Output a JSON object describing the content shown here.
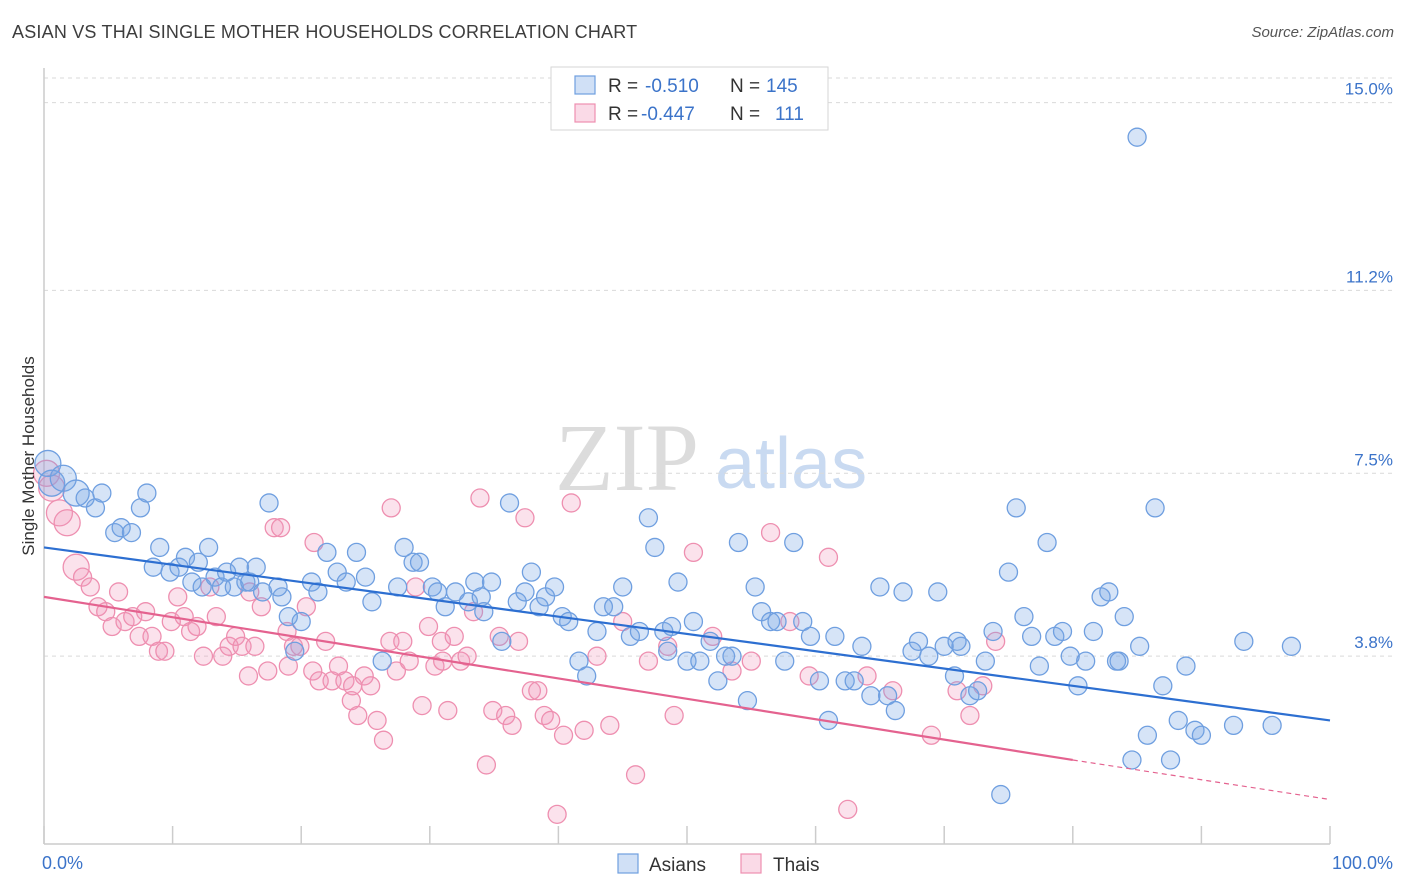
{
  "header": {
    "title": "ASIAN VS THAI SINGLE MOTHER HOUSEHOLDS CORRELATION CHART",
    "source": "Source: ZipAtlas.com"
  },
  "watermark": {
    "zip": "ZIP",
    "atlas": "atlas"
  },
  "colors": {
    "asians": "#6f9fe0",
    "asians_fill": "rgba(120,165,230,0.30)",
    "asians_line": "#2d6fd1",
    "thais": "#ee8fb0",
    "thais_fill": "rgba(240,150,185,0.28)",
    "thais_line": "#e4628f",
    "tick_text": "#3b73c9",
    "grid": "#d9d9d9"
  },
  "legend": {
    "rows": [
      {
        "r_label": "R =",
        "r_value": "-0.510",
        "n_label": "N =",
        "n_value": "145"
      },
      {
        "r_label": "R =",
        "r_value": "-0.447",
        "n_label": "N =",
        "n_value": "111"
      }
    ],
    "bottom": [
      "Asians",
      "Thais"
    ]
  },
  "chart_data": {
    "type": "scatter",
    "title": "ASIAN VS THAI SINGLE MOTHER HOUSEHOLDS CORRELATION CHART",
    "xlabel": "",
    "ylabel": "Single Mother Households",
    "xlim": [
      0,
      100
    ],
    "ylim": [
      0,
      15.7
    ],
    "x_tick_labels": [
      "0.0%",
      "100.0%"
    ],
    "y_ticks": [
      3.8,
      7.5,
      11.2,
      15.0
    ],
    "y_tick_labels": [
      "3.8%",
      "7.5%",
      "11.2%",
      "15.0%"
    ],
    "grid": true,
    "legend_position": "top-center",
    "series": [
      {
        "name": "Asians",
        "r": -0.51,
        "n": 145,
        "trend": {
          "x": [
            0,
            100
          ],
          "y": [
            6.0,
            2.5
          ]
        },
        "points": [
          [
            0.3,
            7.7
          ],
          [
            0.6,
            7.3
          ],
          [
            1.5,
            7.4
          ],
          [
            2.5,
            7.1
          ],
          [
            3.2,
            7.0
          ],
          [
            4.0,
            6.8
          ],
          [
            4.5,
            7.1
          ],
          [
            5.5,
            6.3
          ],
          [
            6.0,
            6.4
          ],
          [
            6.8,
            6.3
          ],
          [
            7.5,
            6.8
          ],
          [
            8.0,
            7.1
          ],
          [
            8.5,
            5.6
          ],
          [
            9.0,
            6.0
          ],
          [
            9.8,
            5.5
          ],
          [
            10.5,
            5.6
          ],
          [
            11.0,
            5.8
          ],
          [
            11.5,
            5.3
          ],
          [
            12.0,
            5.7
          ],
          [
            12.3,
            5.2
          ],
          [
            12.8,
            6.0
          ],
          [
            13.3,
            5.4
          ],
          [
            13.8,
            5.2
          ],
          [
            14.2,
            5.5
          ],
          [
            14.8,
            5.2
          ],
          [
            15.2,
            5.6
          ],
          [
            15.7,
            5.3
          ],
          [
            16.0,
            5.3
          ],
          [
            16.5,
            5.6
          ],
          [
            17.0,
            5.1
          ],
          [
            17.5,
            6.9
          ],
          [
            18.5,
            5.0
          ],
          [
            19.0,
            4.6
          ],
          [
            19.5,
            3.9
          ],
          [
            20.0,
            4.5
          ],
          [
            20.8,
            5.3
          ],
          [
            21.3,
            5.1
          ],
          [
            22.0,
            5.9
          ],
          [
            22.8,
            5.5
          ],
          [
            23.5,
            5.3
          ],
          [
            24.3,
            5.9
          ],
          [
            25.0,
            5.4
          ],
          [
            25.5,
            4.9
          ],
          [
            26.3,
            3.7
          ],
          [
            27.5,
            5.2
          ],
          [
            28.0,
            6.0
          ],
          [
            28.7,
            5.7
          ],
          [
            29.2,
            5.7
          ],
          [
            30.2,
            5.2
          ],
          [
            30.6,
            5.1
          ],
          [
            31.2,
            4.8
          ],
          [
            32.0,
            5.1
          ],
          [
            33.0,
            4.9
          ],
          [
            33.5,
            5.3
          ],
          [
            34.0,
            5.0
          ],
          [
            34.8,
            5.3
          ],
          [
            35.6,
            4.1
          ],
          [
            36.2,
            6.9
          ],
          [
            36.8,
            4.9
          ],
          [
            37.4,
            5.1
          ],
          [
            37.9,
            5.5
          ],
          [
            38.5,
            4.8
          ],
          [
            39.0,
            5.0
          ],
          [
            39.7,
            5.2
          ],
          [
            40.3,
            4.6
          ],
          [
            40.8,
            4.5
          ],
          [
            41.6,
            3.7
          ],
          [
            42.2,
            3.4
          ],
          [
            43.0,
            4.3
          ],
          [
            43.5,
            4.8
          ],
          [
            44.3,
            4.8
          ],
          [
            45.0,
            5.2
          ],
          [
            45.6,
            4.2
          ],
          [
            46.3,
            4.3
          ],
          [
            47.0,
            6.6
          ],
          [
            47.5,
            6.0
          ],
          [
            48.2,
            4.3
          ],
          [
            48.8,
            4.4
          ],
          [
            49.3,
            5.3
          ],
          [
            50.0,
            3.7
          ],
          [
            50.5,
            4.5
          ],
          [
            51.0,
            3.7
          ],
          [
            51.8,
            4.1
          ],
          [
            52.4,
            3.3
          ],
          [
            53.0,
            3.8
          ],
          [
            53.5,
            3.8
          ],
          [
            54.0,
            6.1
          ],
          [
            54.7,
            2.9
          ],
          [
            55.3,
            5.2
          ],
          [
            55.8,
            4.7
          ],
          [
            56.5,
            4.5
          ],
          [
            57.0,
            4.5
          ],
          [
            57.6,
            3.7
          ],
          [
            58.3,
            6.1
          ],
          [
            59.0,
            4.5
          ],
          [
            59.6,
            4.2
          ],
          [
            60.3,
            3.3
          ],
          [
            61.0,
            2.5
          ],
          [
            61.5,
            4.2
          ],
          [
            62.3,
            3.3
          ],
          [
            63.0,
            3.3
          ],
          [
            63.6,
            4.0
          ],
          [
            64.3,
            3.0
          ],
          [
            65.0,
            5.2
          ],
          [
            65.6,
            3.0
          ],
          [
            66.2,
            2.7
          ],
          [
            66.8,
            5.1
          ],
          [
            67.5,
            3.9
          ],
          [
            68.0,
            4.1
          ],
          [
            68.8,
            3.8
          ],
          [
            69.5,
            5.1
          ],
          [
            70.0,
            4.0
          ],
          [
            70.8,
            3.4
          ],
          [
            71.3,
            4.0
          ],
          [
            72.0,
            3.0
          ],
          [
            72.6,
            3.1
          ],
          [
            73.2,
            3.7
          ],
          [
            73.8,
            4.3
          ],
          [
            74.4,
            1.0
          ],
          [
            75.0,
            5.5
          ],
          [
            75.6,
            6.8
          ],
          [
            76.2,
            4.6
          ],
          [
            76.8,
            4.2
          ],
          [
            77.4,
            3.6
          ],
          [
            78.0,
            6.1
          ],
          [
            78.6,
            4.2
          ],
          [
            79.2,
            4.3
          ],
          [
            79.8,
            3.8
          ],
          [
            80.4,
            3.2
          ],
          [
            81.0,
            3.7
          ],
          [
            81.6,
            4.3
          ],
          [
            82.2,
            5.0
          ],
          [
            82.8,
            5.1
          ],
          [
            83.4,
            3.7
          ],
          [
            84.0,
            4.6
          ],
          [
            84.6,
            1.7
          ],
          [
            85.2,
            4.0
          ],
          [
            85.8,
            2.2
          ],
          [
            86.4,
            6.8
          ],
          [
            87.0,
            3.2
          ],
          [
            87.6,
            1.7
          ],
          [
            88.2,
            2.5
          ],
          [
            88.8,
            3.6
          ],
          [
            89.5,
            2.3
          ],
          [
            90.0,
            2.2
          ],
          [
            93.3,
            4.1
          ],
          [
            85.0,
            14.3
          ],
          [
            83.6,
            3.7
          ],
          [
            71.0,
            4.1
          ],
          [
            48.5,
            3.9
          ],
          [
            34.2,
            4.7
          ],
          [
            18.2,
            5.2
          ],
          [
            92.5,
            2.4
          ],
          [
            95.5,
            2.4
          ],
          [
            97.0,
            4.0
          ]
        ]
      },
      {
        "name": "Thais",
        "r": -0.447,
        "n": 111,
        "trend": {
          "x": [
            0,
            80,
            100
          ],
          "y": [
            5.0,
            1.7,
            0.9
          ]
        },
        "points": [
          [
            0.2,
            7.5
          ],
          [
            0.6,
            7.2
          ],
          [
            1.2,
            6.7
          ],
          [
            1.8,
            6.5
          ],
          [
            2.5,
            5.6
          ],
          [
            3.0,
            5.4
          ],
          [
            3.6,
            5.2
          ],
          [
            4.2,
            4.8
          ],
          [
            4.8,
            4.7
          ],
          [
            5.3,
            4.4
          ],
          [
            5.8,
            5.1
          ],
          [
            6.3,
            4.5
          ],
          [
            6.9,
            4.6
          ],
          [
            7.4,
            4.2
          ],
          [
            7.9,
            4.7
          ],
          [
            8.4,
            4.2
          ],
          [
            8.9,
            3.9
          ],
          [
            9.4,
            3.9
          ],
          [
            9.9,
            4.5
          ],
          [
            10.4,
            5.0
          ],
          [
            10.9,
            4.6
          ],
          [
            11.4,
            4.3
          ],
          [
            11.9,
            4.4
          ],
          [
            12.4,
            3.8
          ],
          [
            12.9,
            5.2
          ],
          [
            13.4,
            4.6
          ],
          [
            13.9,
            3.8
          ],
          [
            14.4,
            4.0
          ],
          [
            14.9,
            4.2
          ],
          [
            15.4,
            4.0
          ],
          [
            15.9,
            3.4
          ],
          [
            16.4,
            4.0
          ],
          [
            16.9,
            4.8
          ],
          [
            17.4,
            3.5
          ],
          [
            17.9,
            6.4
          ],
          [
            18.4,
            6.4
          ],
          [
            18.9,
            4.3
          ],
          [
            19.4,
            4.0
          ],
          [
            19.9,
            4.0
          ],
          [
            20.4,
            4.8
          ],
          [
            20.9,
            3.5
          ],
          [
            21.4,
            3.3
          ],
          [
            21.9,
            4.1
          ],
          [
            22.4,
            3.3
          ],
          [
            22.9,
            3.6
          ],
          [
            23.4,
            3.3
          ],
          [
            23.9,
            2.9
          ],
          [
            24.4,
            2.6
          ],
          [
            24.9,
            3.4
          ],
          [
            25.4,
            3.2
          ],
          [
            25.9,
            2.5
          ],
          [
            26.4,
            2.1
          ],
          [
            26.9,
            4.1
          ],
          [
            27.4,
            3.5
          ],
          [
            27.9,
            4.1
          ],
          [
            28.4,
            3.7
          ],
          [
            28.9,
            5.2
          ],
          [
            29.4,
            2.8
          ],
          [
            29.9,
            4.4
          ],
          [
            30.4,
            3.6
          ],
          [
            30.9,
            4.1
          ],
          [
            31.4,
            2.7
          ],
          [
            31.9,
            4.2
          ],
          [
            32.4,
            3.7
          ],
          [
            32.9,
            3.8
          ],
          [
            33.4,
            4.7
          ],
          [
            33.9,
            7.0
          ],
          [
            34.4,
            1.6
          ],
          [
            34.9,
            2.7
          ],
          [
            35.4,
            4.2
          ],
          [
            35.9,
            2.6
          ],
          [
            36.4,
            2.4
          ],
          [
            36.9,
            4.1
          ],
          [
            37.4,
            6.6
          ],
          [
            37.9,
            3.1
          ],
          [
            38.4,
            3.1
          ],
          [
            38.9,
            2.6
          ],
          [
            39.4,
            2.5
          ],
          [
            39.9,
            0.6
          ],
          [
            40.4,
            2.2
          ],
          [
            41.0,
            6.9
          ],
          [
            42.0,
            2.3
          ],
          [
            43.0,
            3.8
          ],
          [
            44.0,
            2.4
          ],
          [
            45.0,
            4.5
          ],
          [
            46.0,
            1.4
          ],
          [
            47.0,
            3.7
          ],
          [
            48.5,
            4.0
          ],
          [
            49.0,
            2.6
          ],
          [
            50.5,
            5.9
          ],
          [
            52.0,
            4.2
          ],
          [
            53.5,
            3.5
          ],
          [
            55.0,
            3.7
          ],
          [
            56.5,
            6.3
          ],
          [
            58.0,
            4.5
          ],
          [
            59.5,
            3.4
          ],
          [
            61.0,
            5.8
          ],
          [
            62.5,
            0.7
          ],
          [
            64.0,
            3.4
          ],
          [
            66.0,
            3.1
          ],
          [
            69.0,
            2.2
          ],
          [
            71.0,
            3.1
          ],
          [
            72.0,
            2.6
          ],
          [
            73.0,
            3.2
          ],
          [
            74.0,
            4.1
          ],
          [
            31.0,
            3.7
          ],
          [
            27.0,
            6.8
          ],
          [
            24.0,
            3.2
          ],
          [
            21.0,
            6.1
          ],
          [
            19.0,
            3.6
          ],
          [
            16.0,
            5.1
          ]
        ]
      }
    ]
  }
}
